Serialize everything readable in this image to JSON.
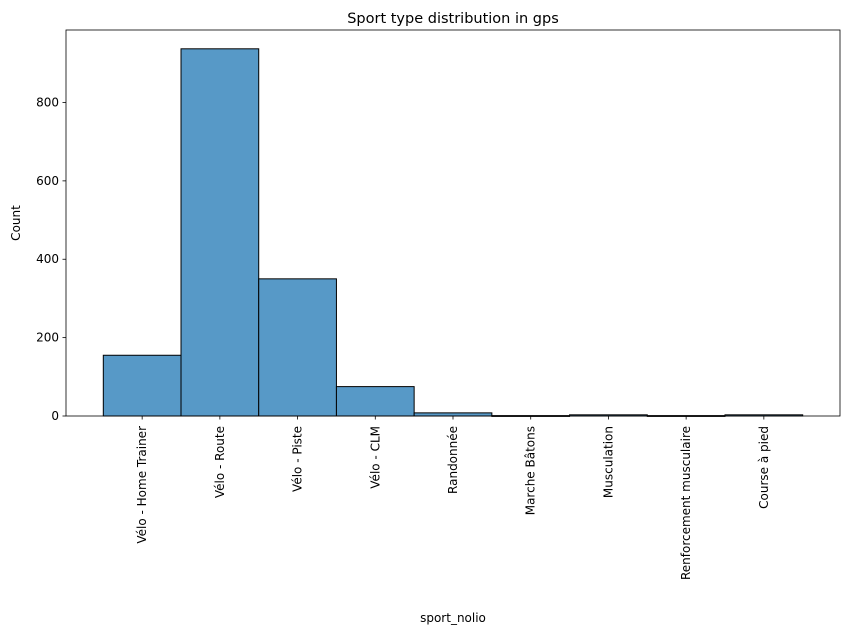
{
  "chart_data": {
    "type": "bar",
    "title": "Sport type distribution in gps",
    "xlabel": "sport_nolio",
    "ylabel": "Count",
    "categories": [
      "Vélo - Home Trainer",
      "Vélo - Route",
      "Vélo - Piste",
      "Vélo - CLM",
      "Randonnée",
      "Marche Bâtons",
      "Musculation",
      "Renforcement musculaire",
      "Course à pied"
    ],
    "values": [
      155,
      937,
      350,
      75,
      8,
      1,
      3,
      1,
      3
    ],
    "ylim": [
      0,
      985
    ],
    "yticks": [
      0,
      200,
      400,
      600,
      800
    ],
    "grid": false,
    "legend": "none",
    "bar_color": "#5799c7",
    "edge_color": "#000000"
  }
}
